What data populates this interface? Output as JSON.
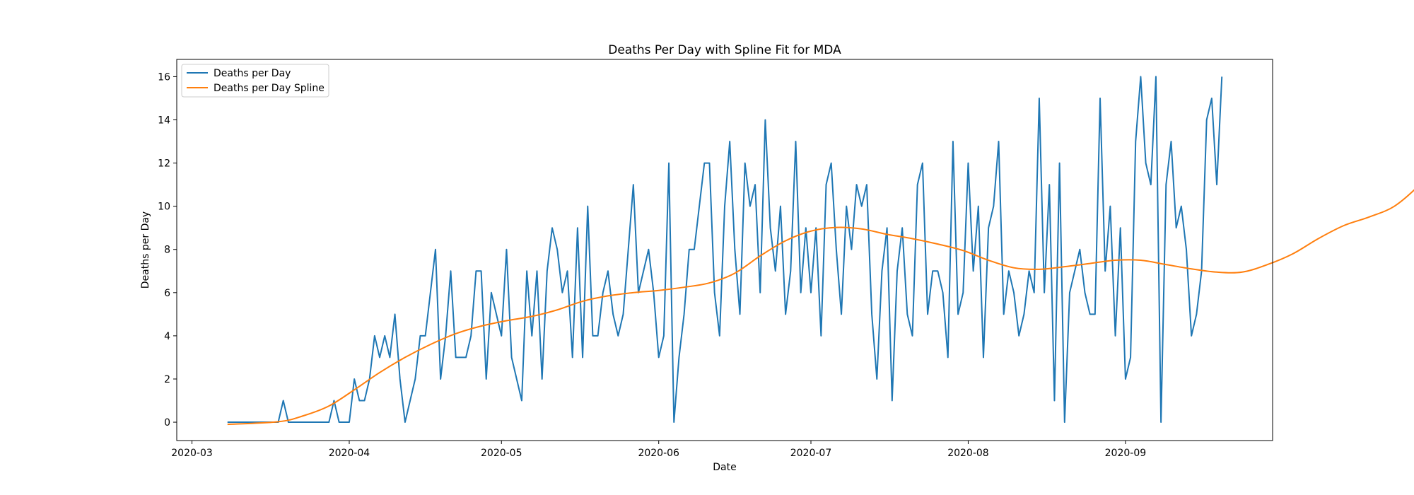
{
  "chart_data": {
    "type": "line",
    "title": "Deaths Per Day with Spline Fit for MDA",
    "xlabel": "Date",
    "ylabel": "Deaths per Day",
    "x_start": "2020-03-08",
    "xlim": [
      "2020-02-27",
      "2020-09-30"
    ],
    "ylim": [
      -0.85,
      16.8
    ],
    "x_ticks": [
      "2020-03-01",
      "2020-04-01",
      "2020-05-01",
      "2020-06-01",
      "2020-07-01",
      "2020-08-01",
      "2020-09-01"
    ],
    "x_tick_labels": [
      "2020-03",
      "2020-04",
      "2020-05",
      "2020-06",
      "2020-07",
      "2020-08",
      "2020-09"
    ],
    "y_ticks": [
      0,
      2,
      4,
      6,
      8,
      10,
      12,
      14,
      16
    ],
    "legend": {
      "position": "upper left",
      "entries": [
        "Deaths per Day",
        "Deaths per Day Spline"
      ]
    },
    "grid": false,
    "series": [
      {
        "name": "Deaths per Day",
        "color": "#1f77b4",
        "values": [
          0,
          0,
          0,
          0,
          0,
          0,
          0,
          0,
          0,
          0,
          0,
          1,
          0,
          0,
          0,
          0,
          0,
          0,
          0,
          0,
          0,
          1,
          0,
          0,
          0,
          2,
          1,
          1,
          2,
          4,
          3,
          4,
          3,
          5,
          2,
          0,
          1,
          2,
          4,
          4,
          6,
          8,
          2,
          4,
          7,
          3,
          3,
          3,
          4,
          7,
          7,
          2,
          6,
          5,
          4,
          8,
          3,
          2,
          1,
          7,
          4,
          7,
          2,
          7,
          9,
          8,
          6,
          7,
          3,
          9,
          3,
          10,
          4,
          4,
          6,
          7,
          5,
          4,
          5,
          8,
          11,
          6,
          7,
          8,
          6,
          3,
          4,
          12,
          0,
          3,
          5,
          8,
          8,
          10,
          12,
          12,
          6,
          4,
          10,
          13,
          8,
          5,
          12,
          10,
          11,
          6,
          14,
          9,
          7,
          10,
          5,
          7,
          13,
          6,
          9,
          6,
          9,
          4,
          11,
          12,
          8,
          5,
          10,
          8,
          11,
          10,
          11,
          5,
          2,
          7,
          9,
          1,
          7,
          9,
          5,
          4,
          11,
          12,
          5,
          7,
          7,
          6,
          3,
          13,
          5,
          6,
          12,
          7,
          10,
          3,
          9,
          10,
          13,
          5,
          7,
          6,
          4,
          5,
          7,
          6,
          15,
          6,
          11,
          1,
          12,
          0,
          6,
          7,
          8,
          6,
          5,
          5,
          15,
          7,
          10,
          4,
          9,
          2,
          3,
          13,
          16,
          12,
          11,
          16,
          0,
          11,
          13,
          9,
          10,
          8,
          4,
          5,
          7,
          14,
          15,
          11,
          16
        ]
      },
      {
        "name": "Deaths per Day Spline",
        "color": "#ff7f0e",
        "knots": [
          [
            0,
            -0.1
          ],
          [
            10,
            0.02
          ],
          [
            15,
            0.3
          ],
          [
            20,
            0.75
          ],
          [
            25,
            1.5
          ],
          [
            30,
            2.3
          ],
          [
            35,
            3.0
          ],
          [
            40,
            3.6
          ],
          [
            45,
            4.1
          ],
          [
            50,
            4.45
          ],
          [
            55,
            4.7
          ],
          [
            60,
            4.9
          ],
          [
            65,
            5.2
          ],
          [
            70,
            5.6
          ],
          [
            75,
            5.85
          ],
          [
            80,
            6.0
          ],
          [
            85,
            6.1
          ],
          [
            90,
            6.25
          ],
          [
            95,
            6.45
          ],
          [
            100,
            6.9
          ],
          [
            105,
            7.7
          ],
          [
            110,
            8.4
          ],
          [
            115,
            8.85
          ],
          [
            120,
            9.02
          ],
          [
            125,
            8.95
          ],
          [
            130,
            8.7
          ],
          [
            135,
            8.5
          ],
          [
            140,
            8.25
          ],
          [
            145,
            7.95
          ],
          [
            150,
            7.5
          ],
          [
            155,
            7.15
          ],
          [
            160,
            7.08
          ],
          [
            165,
            7.2
          ],
          [
            170,
            7.35
          ],
          [
            175,
            7.5
          ],
          [
            180,
            7.5
          ],
          [
            185,
            7.3
          ],
          [
            190,
            7.1
          ],
          [
            195,
            6.95
          ],
          [
            200,
            6.95
          ],
          [
            205,
            7.3
          ],
          [
            210,
            7.8
          ],
          [
            215,
            8.5
          ],
          [
            220,
            9.1
          ],
          [
            225,
            9.5
          ],
          [
            230,
            10.0
          ],
          [
            235,
            11.0
          ],
          [
            238,
            11.85
          ]
        ]
      }
    ]
  }
}
